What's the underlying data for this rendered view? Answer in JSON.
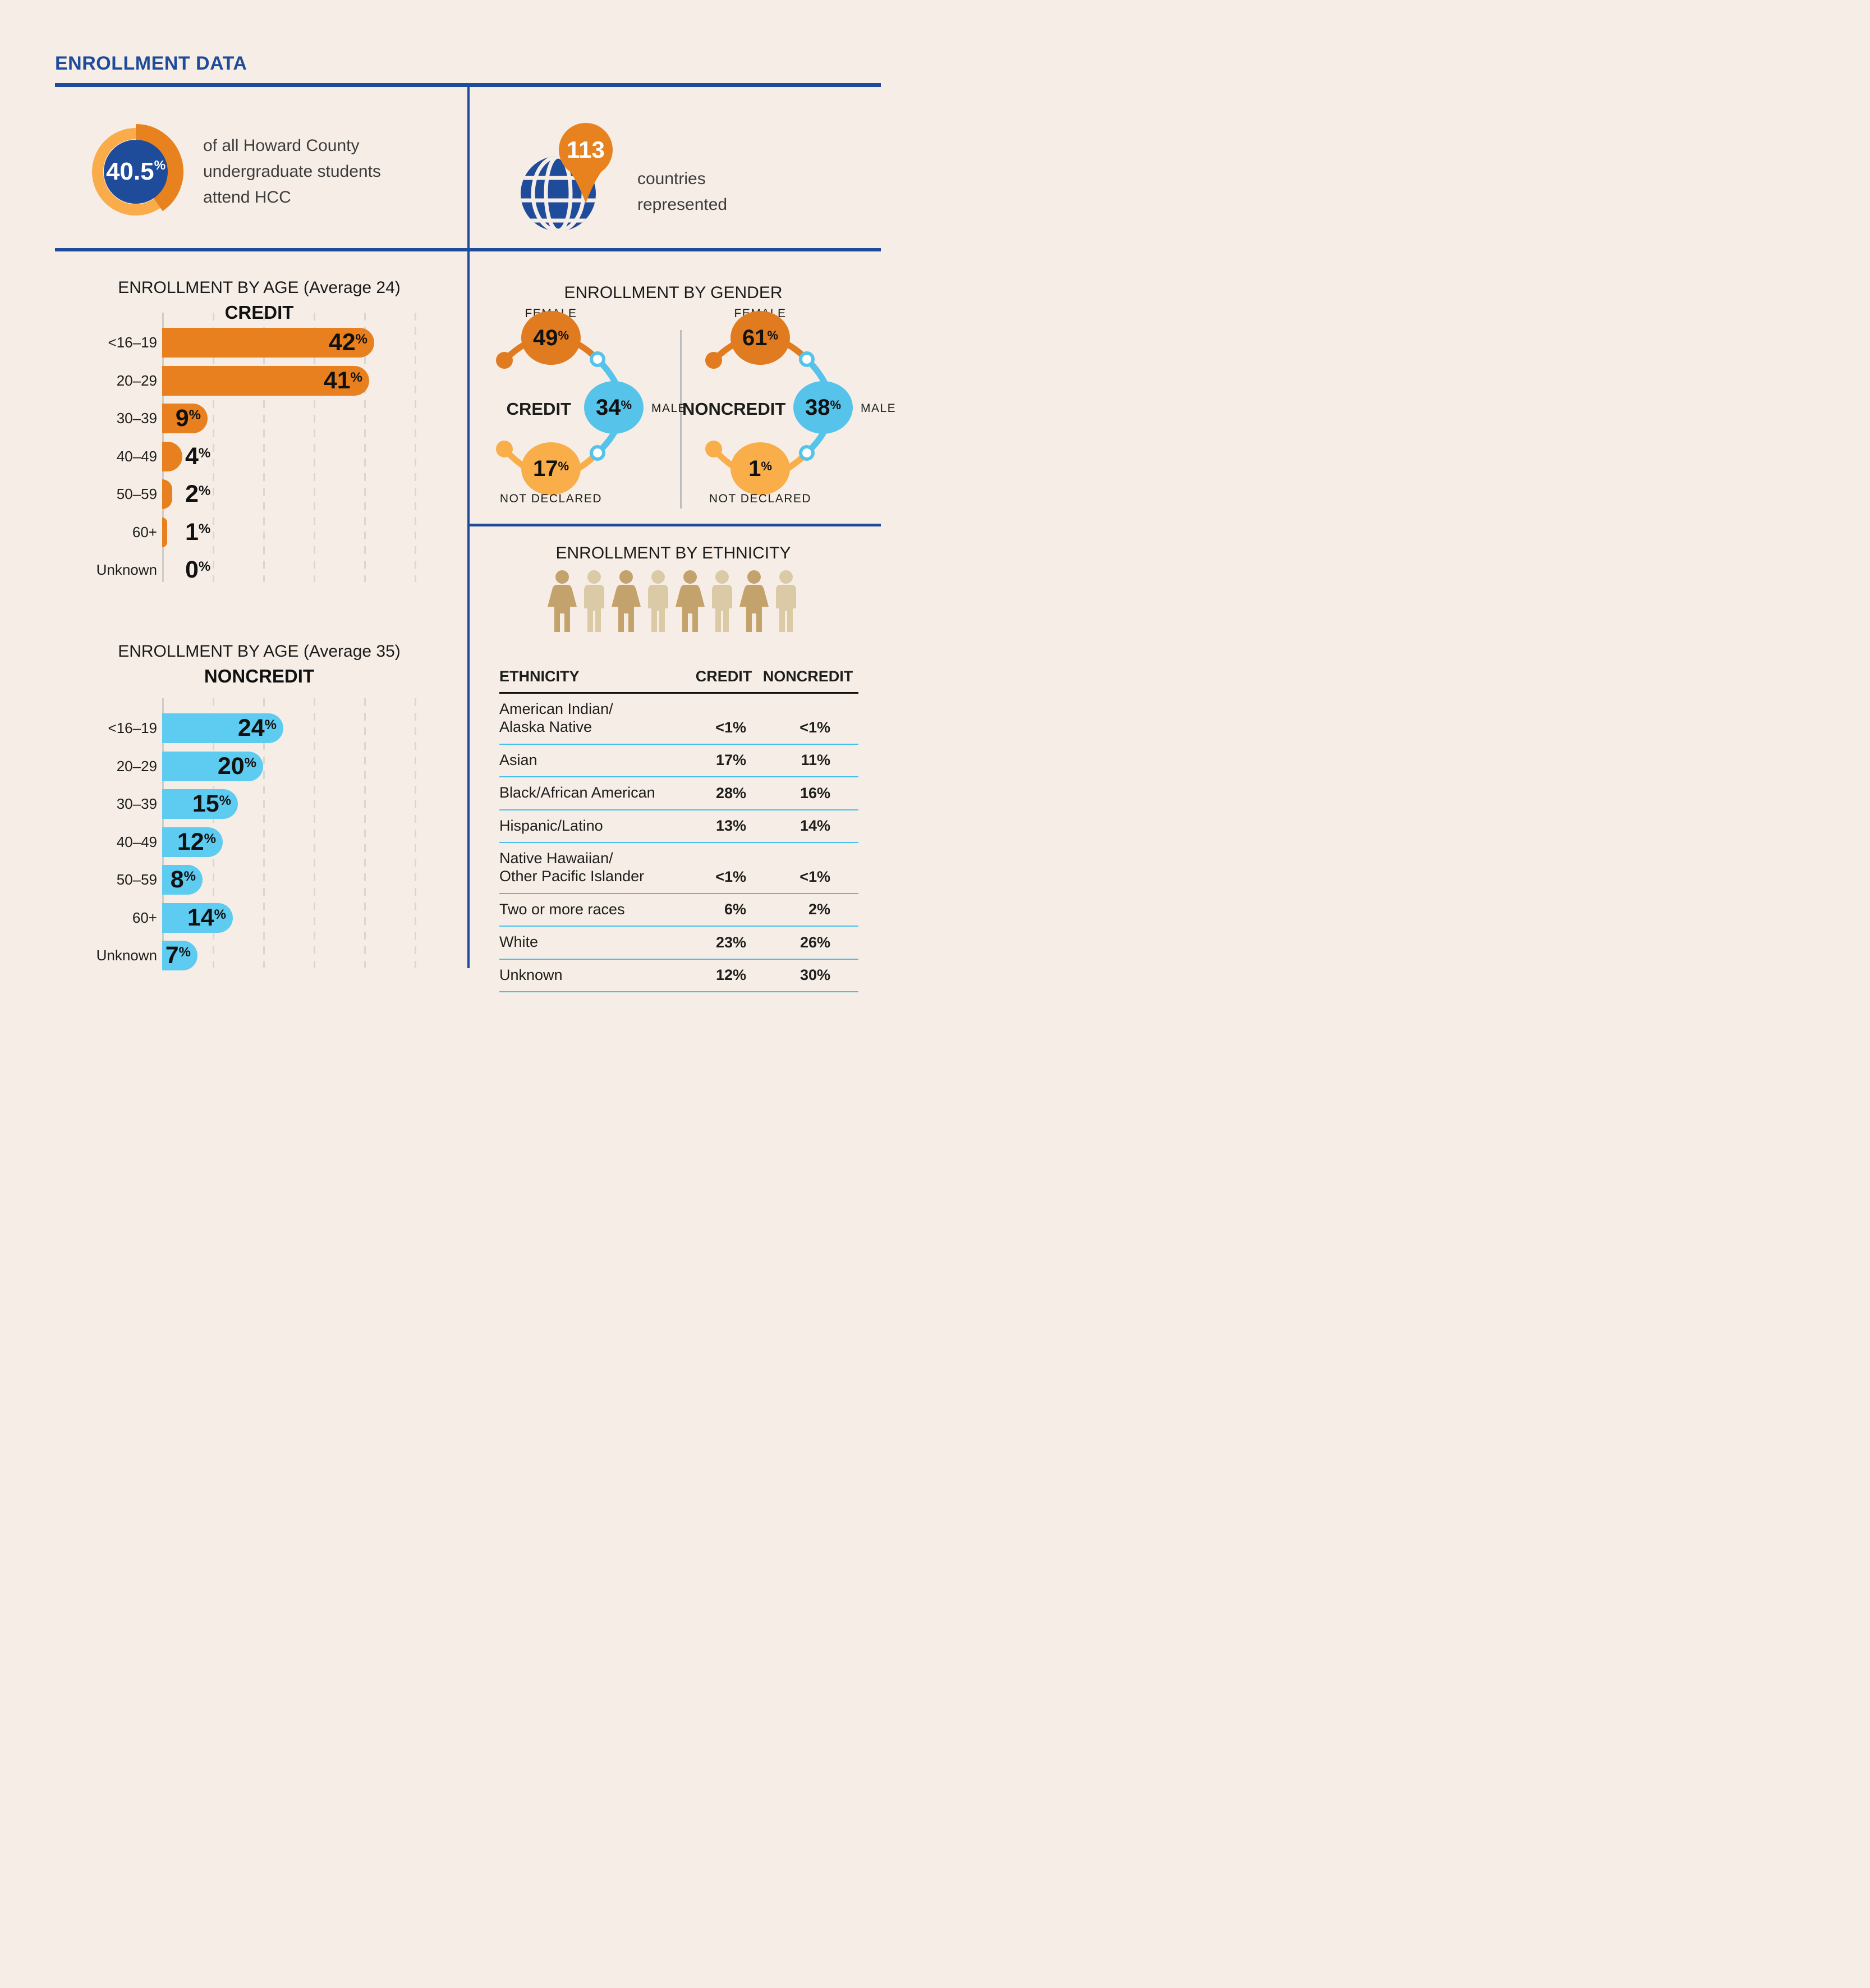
{
  "page": {
    "title": "ENROLLMENT DATA"
  },
  "top_stats": {
    "hcc_share": {
      "value": 40.5,
      "description": "of all Howard County\nundergraduate students\nattend HCC"
    },
    "countries": {
      "value": "113",
      "label": "countries\nrepresented"
    }
  },
  "chart_data": [
    {
      "type": "pie",
      "subtype": "donut",
      "value": 40.5,
      "label": "40.5%",
      "slices": [
        {
          "name": "attend HCC",
          "value": 40.5
        },
        {
          "name": "other",
          "value": 59.5
        }
      ],
      "colors": {
        "highlight_arc": "#e8821f",
        "ring": "#f9ac49",
        "center": "#1f4b9b",
        "value_text": "#ffffff"
      }
    },
    {
      "type": "bar",
      "orientation": "horizontal",
      "title": "ENROLLMENT BY AGE (Average 24)",
      "subtitle": "CREDIT",
      "categories": [
        "<16–19",
        "20–29",
        "30–39",
        "40–49",
        "50–59",
        "60+",
        "Unknown"
      ],
      "values": [
        42,
        41,
        9,
        4,
        2,
        1,
        0
      ],
      "unit": "%",
      "xlim": [
        0,
        50
      ],
      "gridline_step": 10,
      "grid": true,
      "bar_color": "#e8801f"
    },
    {
      "type": "bar",
      "orientation": "horizontal",
      "title": "ENROLLMENT BY AGE (Average 35)",
      "subtitle": "NONCREDIT",
      "categories": [
        "<16–19",
        "20–29",
        "30–39",
        "40–49",
        "50–59",
        "60+",
        "Unknown"
      ],
      "values": [
        24,
        20,
        15,
        12,
        8,
        14,
        7
      ],
      "unit": "%",
      "xlim": [
        0,
        50
      ],
      "gridline_step": 10,
      "grid": true,
      "bar_color": "#5ecbf0"
    },
    {
      "type": "circles",
      "title": "ENROLLMENT BY GENDER",
      "unit": "%",
      "labels": {
        "female": "FEMALE",
        "male": "MALE",
        "not_declared": "NOT DECLARED"
      },
      "groups": [
        {
          "name": "CREDIT",
          "female": 49,
          "male": 34,
          "not_declared": 17
        },
        {
          "name": "NONCREDIT",
          "female": 61,
          "male": 38,
          "not_declared": 1
        }
      ],
      "colors": {
        "female": "#e07b20",
        "male": "#56c3ea",
        "not_declared": "#f9ae49"
      }
    },
    {
      "type": "table",
      "title": "ENROLLMENT BY ETHNICITY",
      "columns": [
        "ETHNICITY",
        "CREDIT",
        "NONCREDIT"
      ],
      "rows": [
        {
          "name": "American Indian/\nAlaska Native",
          "credit": "<1%",
          "noncredit": "<1%"
        },
        {
          "name": "Asian",
          "credit": "17%",
          "noncredit": "11%"
        },
        {
          "name": "Black/African American",
          "credit": "28%",
          "noncredit": "16%"
        },
        {
          "name": "Hispanic/Latino",
          "credit": "13%",
          "noncredit": "14%"
        },
        {
          "name": "Native Hawaiian/\nOther Pacific Islander",
          "credit": "<1%",
          "noncredit": "<1%"
        },
        {
          "name": "Two or more races",
          "credit": "6%",
          "noncredit": "2%"
        },
        {
          "name": "White",
          "credit": "23%",
          "noncredit": "26%"
        },
        {
          "name": "Unknown",
          "credit": "12%",
          "noncredit": "30%"
        }
      ],
      "figures": [
        "female",
        "male",
        "female",
        "male",
        "female",
        "male",
        "female",
        "male"
      ],
      "figure_colors": {
        "female": "#c3a36b",
        "male": "#dbcaa6"
      }
    }
  ],
  "colors": {
    "background": "#f6eee6",
    "navy": "#1f4b9b",
    "orange": "#e8801f",
    "light_orange": "#f9ac49",
    "sky_blue": "#5ecbf0",
    "gender_blue": "#56c3ea",
    "text_dark": "#1d1d1b",
    "text_body": "#3c3c3c",
    "gridline": "#d9d7d2",
    "table_separator": "#45bfee",
    "divider_gray": "#bcbcbc"
  }
}
